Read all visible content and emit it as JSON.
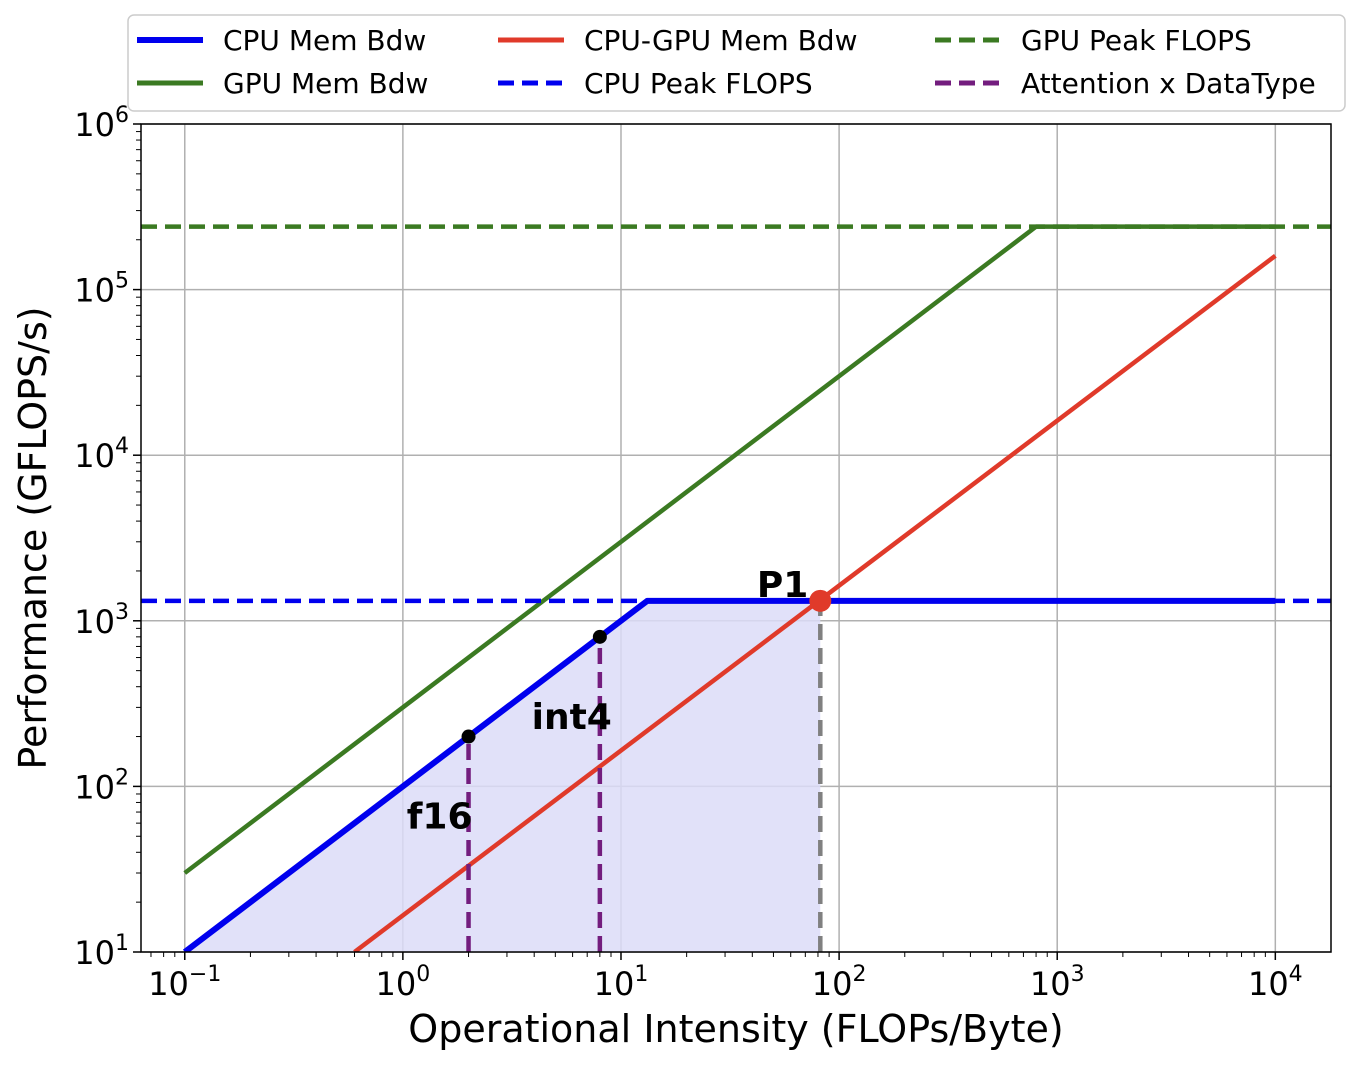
{
  "chart_data": {
    "type": "line",
    "xlabel": "Operational Intensity (FLOPs/Byte)",
    "ylabel": "Performance (GFLOPS/s)",
    "xscale": "log",
    "yscale": "log",
    "xlim": [
      0.063,
      18000
    ],
    "ylim": [
      10,
      1000000
    ],
    "grid": true,
    "legend_position": "top",
    "x_ticks": [
      {
        "value": 0.1,
        "base": "10",
        "exp": "−1"
      },
      {
        "value": 1,
        "base": "10",
        "exp": "0"
      },
      {
        "value": 10,
        "base": "10",
        "exp": "1"
      },
      {
        "value": 100,
        "base": "10",
        "exp": "2"
      },
      {
        "value": 1000,
        "base": "10",
        "exp": "3"
      },
      {
        "value": 10000,
        "base": "10",
        "exp": "4"
      }
    ],
    "y_ticks": [
      {
        "value": 10,
        "base": "10",
        "exp": "1"
      },
      {
        "value": 100,
        "base": "10",
        "exp": "2"
      },
      {
        "value": 1000,
        "base": "10",
        "exp": "3"
      },
      {
        "value": 10000,
        "base": "10",
        "exp": "4"
      },
      {
        "value": 100000,
        "base": "10",
        "exp": "5"
      },
      {
        "value": 1000000,
        "base": "10",
        "exp": "6"
      }
    ],
    "series": [
      {
        "name": "CPU Mem Bdw",
        "color": "#0000ee",
        "dash": false,
        "width": 6,
        "x": [
          0.1,
          13.2,
          10000
        ],
        "y": [
          10,
          1320,
          1320
        ]
      },
      {
        "name": "GPU Mem Bdw",
        "color": "#3b7a22",
        "dash": false,
        "width": 4.5,
        "x": [
          0.1,
          800,
          10000
        ],
        "y": [
          30,
          240000,
          240000
        ]
      },
      {
        "name": "CPU-GPU Mem Bdw",
        "color": "#e03a2a",
        "dash": false,
        "width": 4.5,
        "x": [
          0.6,
          10000
        ],
        "y": [
          10,
          160000
        ]
      },
      {
        "name": "CPU Peak FLOPS",
        "color": "#0000ee",
        "dash": true,
        "width": 4.5,
        "x": [
          0.063,
          18000
        ],
        "y": [
          1320,
          1320
        ]
      },
      {
        "name": "GPU Peak FLOPS",
        "color": "#3b7a22",
        "dash": true,
        "width": 4.5,
        "x": [
          0.063,
          18000
        ],
        "y": [
          240000,
          240000
        ]
      },
      {
        "name": "Attention x DataType",
        "color": "#731d7e",
        "dash": true,
        "width": 4.5,
        "segments": [
          {
            "x": [
              2,
              2
            ],
            "y": [
              10,
              200
            ]
          },
          {
            "x": [
              8,
              8
            ],
            "y": [
              10,
              800
            ]
          }
        ]
      }
    ],
    "shaded_region": {
      "color": "#dcdcf8",
      "x": [
        0.1,
        13.2,
        82,
        82
      ],
      "y": [
        10,
        1320,
        1320,
        10
      ]
    },
    "guide_lines": [
      {
        "x": [
          82,
          82
        ],
        "y": [
          10,
          1320
        ],
        "color": "#808080",
        "dash": true
      }
    ],
    "points": [
      {
        "label": "f16",
        "x": 2,
        "y": 200,
        "color": "#000000"
      },
      {
        "label": "int4",
        "x": 8,
        "y": 800,
        "color": "#000000"
      },
      {
        "label": "P1",
        "x": 82,
        "y": 1320,
        "color": "#e03a2a"
      }
    ],
    "legend": [
      [
        "CPU Mem Bdw",
        "GPU Mem Bdw"
      ],
      [
        "CPU-GPU Mem Bdw",
        "CPU Peak FLOPS"
      ],
      [
        "GPU Peak FLOPS",
        "Attention x DataType"
      ]
    ]
  }
}
